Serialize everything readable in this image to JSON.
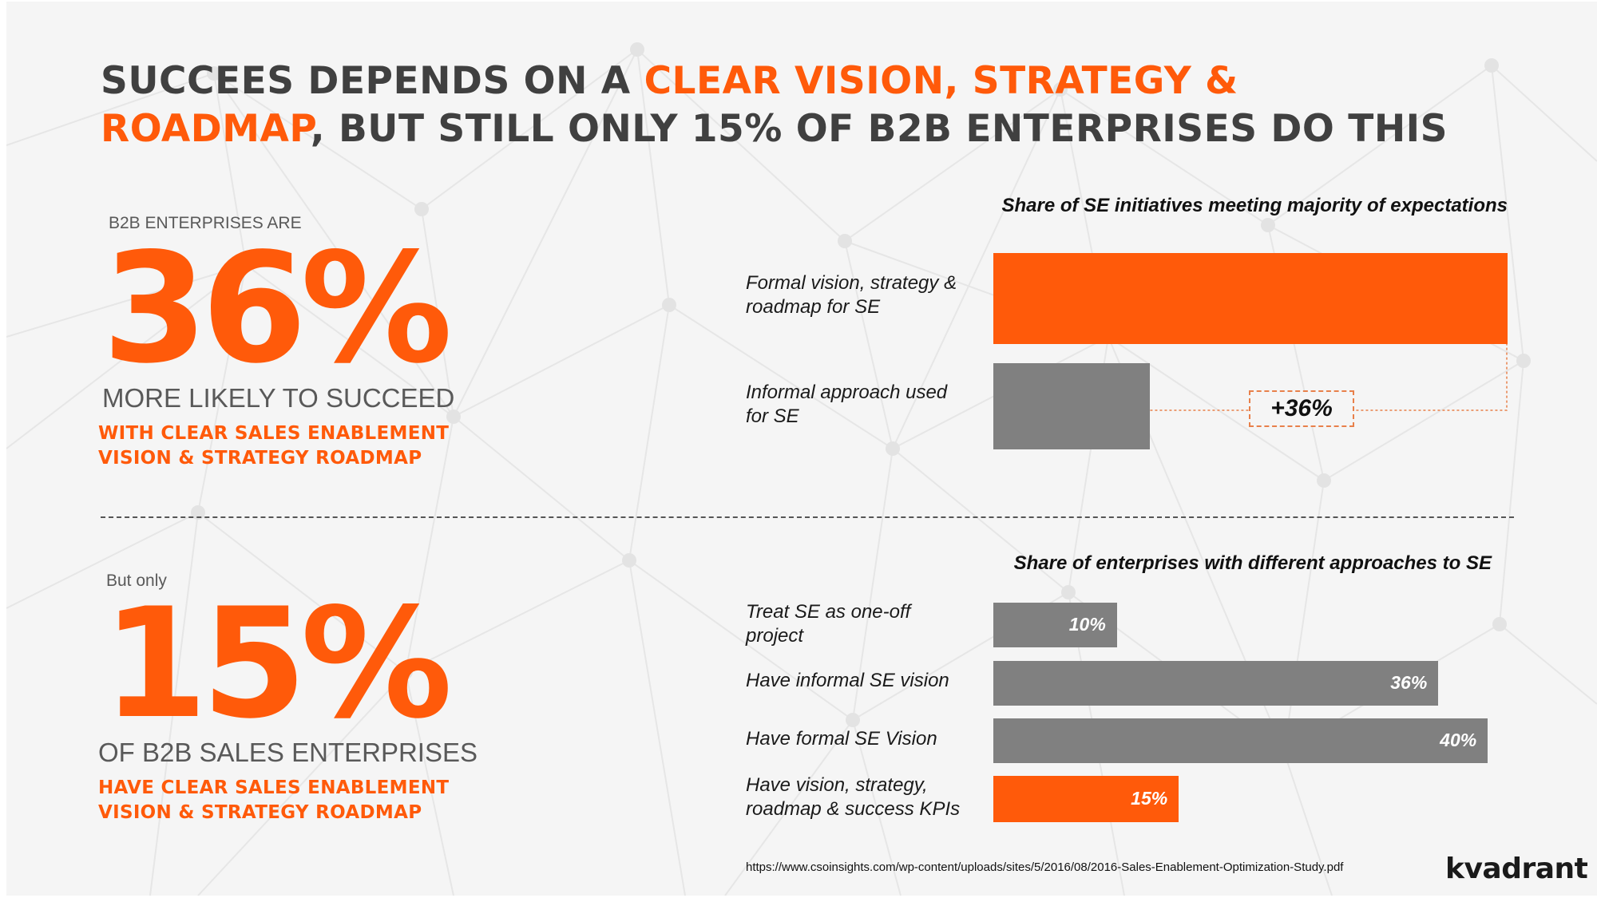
{
  "title": {
    "line1_part1": "SUCCEES DEPENDS ON A ",
    "line1_highlight": "CLEAR VISION, STRATEGY &",
    "line2_highlight": "ROADMAP",
    "line2_part2": ", BUT STILL ONLY 15% OF B2B ENTERPRISES DO THIS"
  },
  "stat1": {
    "pre_label": "B2B ENTERPRISES ARE",
    "value": "36%",
    "sub_label": "MORE LIKELY TO SUCCEED",
    "highlight_line1": "WITH CLEAR SALES ENABLEMENT",
    "highlight_line2": "VISION & STRATEGY ROADMAP"
  },
  "stat2": {
    "pre_label": "But only",
    "value": "15%",
    "sub_label": "OF B2B SALES ENTERPRISES",
    "highlight_line1": "HAVE CLEAR SALES ENABLEMENT",
    "highlight_line2": "VISION & STRATEGY ROADMAP"
  },
  "chart_data": [
    {
      "type": "bar",
      "orientation": "horizontal",
      "title": "Share of SE initiatives meeting majority of expectations",
      "categories": [
        {
          "line1": "Formal vision, strategy &",
          "line2": "roadmap for SE"
        },
        {
          "line1": "Informal approach used",
          "line2": "for SE"
        }
      ],
      "values": [
        100,
        30.5
      ],
      "bar_colors": [
        "#ff5a0a",
        "#808080"
      ],
      "annotation": "+36%",
      "xlim": [
        0,
        100
      ]
    },
    {
      "type": "bar",
      "orientation": "horizontal",
      "title": "Share of enterprises with different approaches to SE",
      "categories": [
        {
          "line1": "Treat SE as one-off",
          "line2": "project"
        },
        {
          "line1": "Have informal SE vision",
          "line2": ""
        },
        {
          "line1": "Have formal SE Vision",
          "line2": ""
        },
        {
          "line1": "Have vision, strategy,",
          "line2": "roadmap & success KPIs"
        }
      ],
      "values": [
        10,
        36,
        40,
        15
      ],
      "value_labels": [
        "10%",
        "36%",
        "40%",
        "15%"
      ],
      "bar_colors": [
        "#808080",
        "#808080",
        "#808080",
        "#ff5a0a"
      ],
      "xlim": [
        0,
        41.6
      ]
    }
  ],
  "source": "https://www.csoinsights.com/wp-content/uploads/sites/5/2016/08/2016-Sales-Enablement-Optimization-Study.pdf",
  "logo": "kvadrant",
  "colors": {
    "accent": "#ff5a0a",
    "bar_gray": "#808080",
    "text_dark": "#404040"
  }
}
